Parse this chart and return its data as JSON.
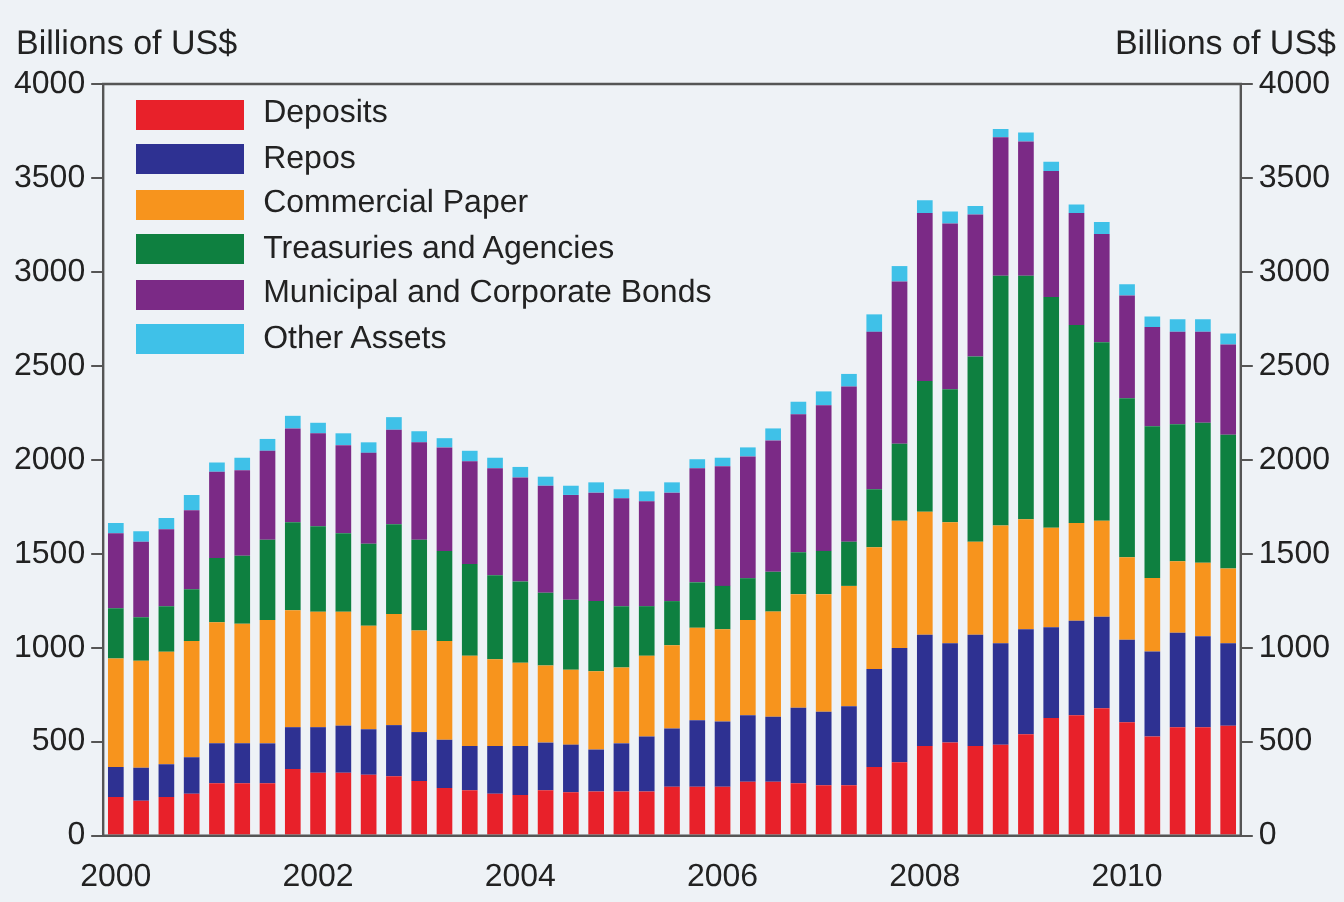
{
  "chart_data": {
    "type": "bar",
    "stacked": true,
    "ylabel": "Billions of US$",
    "y2label": "Billions of US$",
    "categories": [
      "2000",
      null,
      null,
      null,
      null,
      null,
      null,
      null,
      "2002",
      null,
      null,
      null,
      null,
      null,
      null,
      null,
      "2004",
      null,
      null,
      null,
      null,
      null,
      null,
      null,
      "2006",
      null,
      null,
      null,
      null,
      null,
      null,
      null,
      "2008",
      null,
      null,
      null,
      null,
      null,
      null,
      null,
      "2010",
      null,
      null,
      null,
      null
    ],
    "ylim": [
      0,
      4000
    ],
    "yticks": [
      0,
      500,
      1000,
      1500,
      2000,
      2500,
      3000,
      3500,
      4000
    ],
    "y2lim": [
      0,
      4000
    ],
    "y2ticks": [
      0,
      500,
      1000,
      1500,
      2000,
      2500,
      3000,
      3500,
      4000
    ],
    "grid": false,
    "legend": "top left",
    "series": [
      {
        "name": "Deposits",
        "color": "#e8212a",
        "values": [
          205,
          186,
          205,
          223,
          279,
          279,
          279,
          354,
          335,
          335,
          324,
          316,
          290,
          253,
          242,
          223,
          216,
          242,
          231,
          235,
          235,
          235,
          260,
          260,
          260,
          287,
          287,
          279,
          268,
          268,
          365,
          391,
          477,
          495,
          477,
          484,
          540,
          626,
          640,
          678,
          603,
          528,
          577,
          577,
          584
        ]
      },
      {
        "name": "Repos",
        "color": "#2e3192",
        "values": [
          160,
          175,
          175,
          194,
          212,
          212,
          212,
          223,
          242,
          250,
          242,
          272,
          261,
          257,
          235,
          254,
          261,
          253,
          253,
          223,
          256,
          293,
          310,
          354,
          347,
          353,
          346,
          402,
          391,
          421,
          521,
          607,
          592,
          529,
          592,
          540,
          558,
          483,
          503,
          487,
          439,
          452,
          503,
          484,
          440
        ]
      },
      {
        "name": "Commercial Paper",
        "color": "#f7941d",
        "values": [
          577,
          570,
          599,
          618,
          645,
          637,
          656,
          622,
          614,
          606,
          551,
          592,
          540,
          525,
          480,
          461,
          443,
          410,
          398,
          417,
          403,
          429,
          443,
          492,
          491,
          507,
          559,
          604,
          626,
          640,
          648,
          678,
          655,
          644,
          495,
          626,
          585,
          530,
          521,
          511,
          440,
          391,
          380,
          391,
          398
        ]
      },
      {
        "name": "Treasuries and Agencies",
        "color": "#0e8040",
        "values": [
          268,
          231,
          242,
          276,
          342,
          361,
          428,
          469,
          455,
          418,
          436,
          477,
          484,
          480,
          488,
          447,
          432,
          387,
          373,
          373,
          327,
          264,
          235,
          242,
          231,
          223,
          212,
          223,
          230,
          235,
          309,
          409,
          696,
          708,
          986,
          1329,
          1296,
          1228,
          1054,
          949,
          845,
          807,
          729,
          745,
          711
        ]
      },
      {
        "name": "Municipal and Corporate Bonds",
        "color": "#7b2a86",
        "values": [
          399,
          402,
          410,
          420,
          458,
          455,
          473,
          499,
          495,
          469,
          484,
          503,
          518,
          551,
          547,
          570,
          554,
          570,
          558,
          577,
          574,
          558,
          577,
          607,
          637,
          648,
          699,
          734,
          775,
          826,
          838,
          864,
          894,
          882,
          756,
          737,
          715,
          670,
          596,
          577,
          547,
          529,
          492,
          484,
          480
        ]
      },
      {
        "name": "Other Assets",
        "color": "#3fc1e8",
        "values": [
          55,
          56,
          59,
          82,
          49,
          67,
          63,
          67,
          56,
          63,
          56,
          67,
          59,
          49,
          56,
          56,
          56,
          48,
          49,
          55,
          48,
          53,
          55,
          48,
          45,
          48,
          64,
          67,
          74,
          67,
          93,
          82,
          67,
          63,
          45,
          45,
          48,
          49,
          45,
          63,
          60,
          55,
          67,
          67,
          59
        ]
      }
    ]
  }
}
